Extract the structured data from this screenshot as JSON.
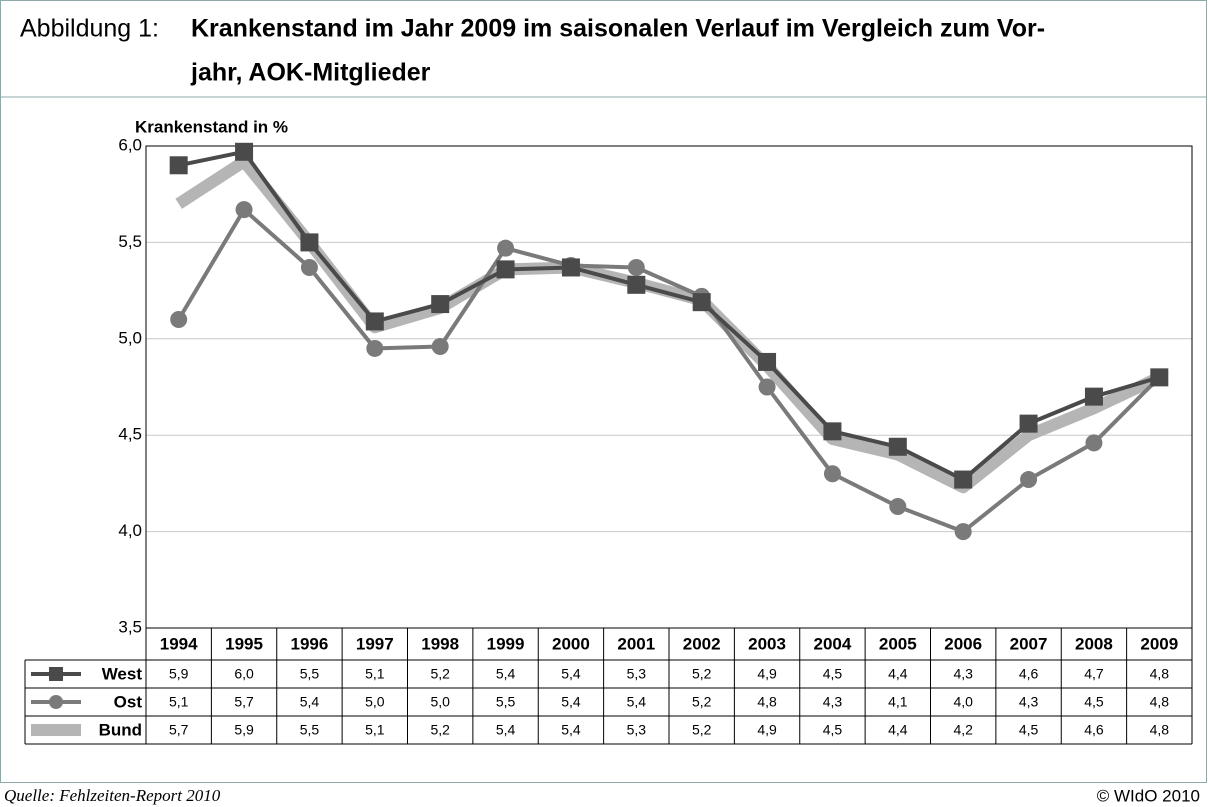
{
  "chart_data": {
    "type": "line",
    "figure_label": "Abbildung 1:",
    "title": [
      "Krankenstand im Jahr 2009 im saisonalen Verlauf im Vergleich zum Vor-",
      "jahr, AOK-Mitglieder"
    ],
    "y_axis_label": "Krankenstand in %",
    "categories": [
      "1994",
      "1995",
      "1996",
      "1997",
      "1998",
      "1999",
      "2000",
      "2001",
      "2002",
      "2003",
      "2004",
      "2005",
      "2006",
      "2007",
      "2008",
      "2009"
    ],
    "series": [
      {
        "name": "West",
        "color": "#4a4a4a",
        "marker": "square",
        "values": [
          5.9,
          5.97,
          5.5,
          5.09,
          5.18,
          5.36,
          5.37,
          5.28,
          5.19,
          4.88,
          4.52,
          4.44,
          4.27,
          4.56,
          4.7,
          4.8
        ],
        "value_labels": [
          "5,9",
          "6,0",
          "5,5",
          "5,1",
          "5,2",
          "5,4",
          "5,4",
          "5,3",
          "5,2",
          "4,9",
          "4,5",
          "4,4",
          "4,3",
          "4,6",
          "4,7",
          "4,8"
        ]
      },
      {
        "name": "Ost",
        "color": "#7a7a7a",
        "marker": "circle",
        "values": [
          5.1,
          5.67,
          5.37,
          4.95,
          4.96,
          5.47,
          5.38,
          5.37,
          5.22,
          4.75,
          4.3,
          4.13,
          4.0,
          4.27,
          4.46,
          4.8
        ],
        "value_labels": [
          "5,1",
          "5,7",
          "5,4",
          "5,0",
          "5,0",
          "5,5",
          "5,4",
          "5,4",
          "5,2",
          "4,8",
          "4,3",
          "4,1",
          "4,0",
          "4,3",
          "4,5",
          "4,8"
        ]
      },
      {
        "name": "Bund",
        "color": "#b5b5b5",
        "marker": "none",
        "values": [
          5.7,
          5.92,
          5.5,
          5.06,
          5.16,
          5.36,
          5.37,
          5.29,
          5.2,
          4.86,
          4.48,
          4.4,
          4.23,
          4.5,
          4.64,
          4.8
        ],
        "value_labels": [
          "5,7",
          "5,9",
          "5,5",
          "5,1",
          "5,2",
          "5,4",
          "5,4",
          "5,3",
          "5,2",
          "4,9",
          "4,5",
          "4,4",
          "4,2",
          "4,5",
          "4,6",
          "4,8"
        ]
      }
    ],
    "ylim": [
      3.5,
      6.0
    ],
    "yticks": [
      {
        "value": 3.5,
        "label": "3,5"
      },
      {
        "value": 4.0,
        "label": "4,0"
      },
      {
        "value": 4.5,
        "label": "4,5"
      },
      {
        "value": 5.0,
        "label": "5,0"
      },
      {
        "value": 5.5,
        "label": "5,5"
      },
      {
        "value": 6.0,
        "label": "6,0"
      }
    ],
    "grid": true,
    "source": "Quelle: Fehlzeiten-Report 2010",
    "copyright": "© WIdO 2010"
  }
}
